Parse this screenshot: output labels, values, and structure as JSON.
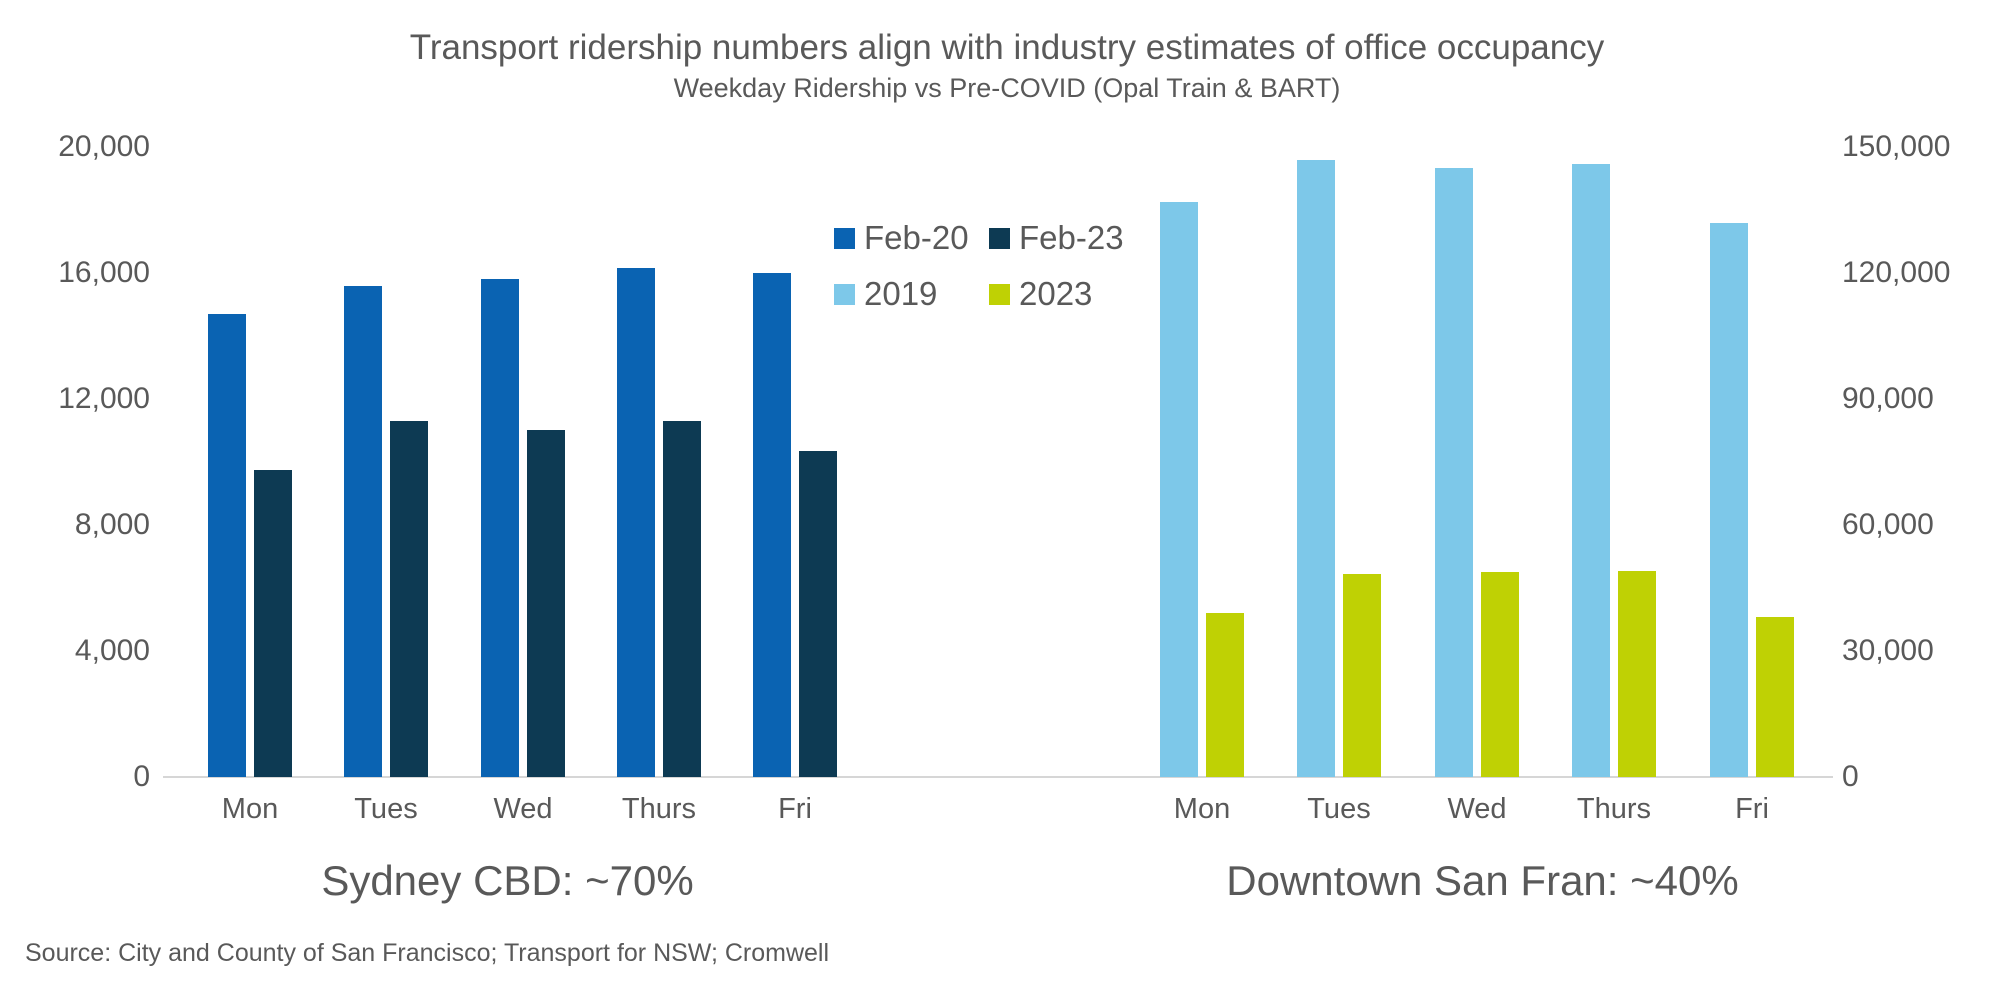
{
  "title": "Transport ridership numbers align with industry estimates of office occupancy",
  "subtitle": "Weekday Ridership vs Pre-COVID (Opal Train & BART)",
  "source": "Source: City and County of San Francisco; Transport for NSW; Cromwell",
  "colors": {
    "feb20": "#0A63B2",
    "feb23": "#0D3A53",
    "y2019": "#7DC8E9",
    "y2023": "#BFD104",
    "text": "#595959",
    "axis_line": "#D6D6D6"
  },
  "chart_data": [
    {
      "type": "bar",
      "title_annotation": "Sydney CBD: ~70%",
      "categories": [
        "Mon",
        "Tues",
        "Wed",
        "Thurs",
        "Fri"
      ],
      "series": [
        {
          "name": "Feb-20",
          "color": "#0A63B2",
          "values": [
            14700,
            15600,
            15800,
            16150,
            16000
          ]
        },
        {
          "name": "Feb-23",
          "color": "#0D3A53",
          "values": [
            9750,
            11300,
            11000,
            11300,
            10350
          ]
        }
      ],
      "axis_side": "left",
      "ylim": [
        0,
        20000
      ],
      "yticks": [
        "0",
        "4,000",
        "8,000",
        "12,000",
        "16,000",
        "20,000"
      ],
      "grid": "off",
      "legend_position": "top-center"
    },
    {
      "type": "bar",
      "title_annotation": "Downtown San Fran: ~40%",
      "categories": [
        "Mon",
        "Tues",
        "Wed",
        "Thurs",
        "Fri"
      ],
      "series": [
        {
          "name": "2019",
          "color": "#7DC8E9",
          "values": [
            137000,
            147000,
            145000,
            146000,
            132000
          ]
        },
        {
          "name": "2023",
          "color": "#BFD104",
          "values": [
            39000,
            48300,
            48800,
            49000,
            38000
          ]
        }
      ],
      "axis_side": "right",
      "ylim": [
        0,
        150000
      ],
      "yticks": [
        "0",
        "30,000",
        "60,000",
        "90,000",
        "120,000",
        "150,000"
      ],
      "grid": "off",
      "legend_position": "top-center"
    }
  ]
}
